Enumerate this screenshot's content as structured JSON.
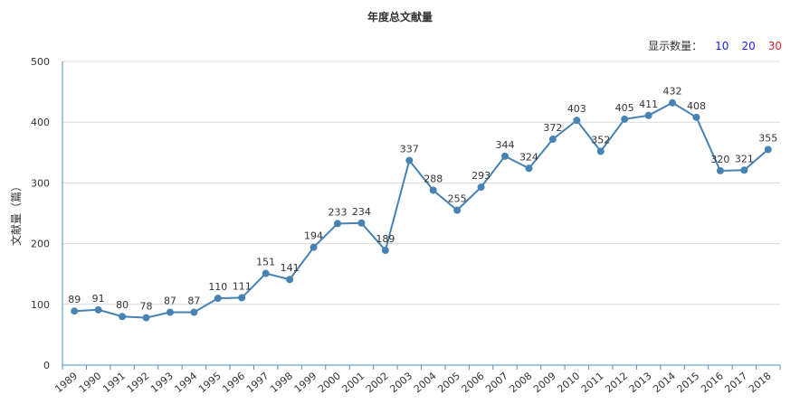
{
  "toolbar": {
    "label": "显示数量：",
    "options": [
      "10",
      "20",
      "30"
    ]
  },
  "colors": {
    "line": "#4682b4",
    "axis": "#4a8ec1",
    "grid": "#d9d9d9",
    "option_blue": "#1a1aff",
    "option_red": "#e8212a"
  },
  "chart_data": {
    "type": "line",
    "title": "年度总文献量",
    "xlabel": "",
    "ylabel": "文献量（篇）",
    "ylim": [
      0,
      500
    ],
    "yticks": [
      0,
      100,
      200,
      300,
      400,
      500
    ],
    "grid": true,
    "legend": "none",
    "categories": [
      "1989",
      "1990",
      "1991",
      "1992",
      "1993",
      "1994",
      "1995",
      "1996",
      "1997",
      "1998",
      "1999",
      "2000",
      "2001",
      "2002",
      "2003",
      "2004",
      "2005",
      "2006",
      "2007",
      "2008",
      "2009",
      "2010",
      "2011",
      "2012",
      "2013",
      "2014",
      "2015",
      "2016",
      "2017",
      "2018"
    ],
    "values": [
      89,
      91,
      80,
      78,
      87,
      87,
      110,
      111,
      151,
      141,
      194,
      233,
      234,
      189,
      337,
      288,
      255,
      293,
      344,
      324,
      372,
      403,
      352,
      405,
      411,
      432,
      408,
      320,
      321,
      355
    ]
  }
}
